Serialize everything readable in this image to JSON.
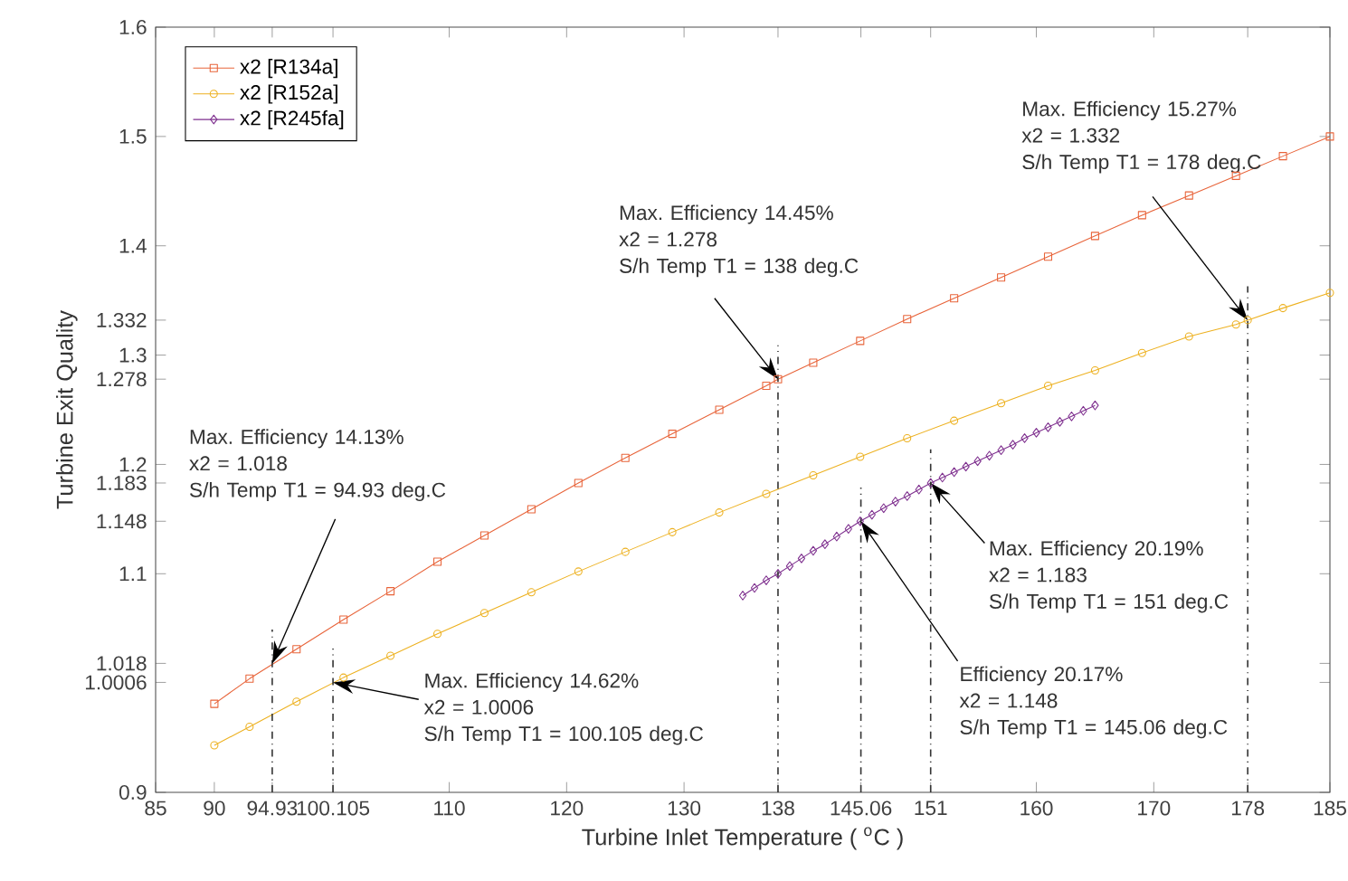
{
  "chart_data": {
    "type": "line",
    "xlabel": "Turbine Inlet Temperature ( $^{o}$C )",
    "ylabel": "Turbine Exit Quality",
    "xlim": [
      85,
      185
    ],
    "ylim": [
      0.9,
      1.6
    ],
    "xticks": [
      85,
      90,
      94.93,
      100.105,
      110,
      120,
      130,
      138,
      145.06,
      151,
      160,
      170,
      178,
      185
    ],
    "yticks": [
      0.9,
      1.0006,
      1.018,
      1.1,
      1.148,
      1.183,
      1.2,
      1.278,
      1.3,
      1.332,
      1.4,
      1.5,
      1.6
    ],
    "grid": false,
    "legend": "top left",
    "line_style": "solid",
    "series": [
      {
        "name": "x2 [R134a]",
        "color": "#e8643a",
        "marker": "square",
        "x": [
          90,
          93,
          97,
          101,
          105,
          109,
          113,
          117,
          121,
          125,
          129,
          133,
          137,
          138,
          141,
          145,
          149,
          153,
          157,
          161,
          165,
          169,
          173,
          177,
          181,
          185
        ],
        "values": [
          0.981,
          1.004,
          1.031,
          1.058,
          1.084,
          1.111,
          1.135,
          1.159,
          1.183,
          1.206,
          1.228,
          1.25,
          1.272,
          1.278,
          1.293,
          1.313,
          1.333,
          1.352,
          1.371,
          1.39,
          1.409,
          1.428,
          1.446,
          1.464,
          1.482,
          1.5
        ]
      },
      {
        "name": "x2 [R152a]",
        "color": "#edb120",
        "marker": "circle",
        "x": [
          90,
          93,
          97,
          101,
          105,
          109,
          113,
          117,
          121,
          125,
          129,
          133,
          137,
          141,
          145,
          149,
          153,
          157,
          161,
          165,
          169,
          173,
          177,
          178,
          181,
          185
        ],
        "values": [
          0.943,
          0.96,
          0.983,
          1.005,
          1.025,
          1.045,
          1.064,
          1.083,
          1.102,
          1.12,
          1.138,
          1.156,
          1.173,
          1.19,
          1.207,
          1.224,
          1.24,
          1.256,
          1.272,
          1.286,
          1.302,
          1.317,
          1.328,
          1.332,
          1.343,
          1.357
        ]
      },
      {
        "name": "x2 [R245fa]",
        "color": "#7e2f8e",
        "marker": "diamond",
        "x": [
          135,
          136,
          137,
          138,
          139,
          140,
          141,
          142,
          143,
          144,
          145,
          146,
          147,
          148,
          149,
          150,
          151,
          152,
          153,
          154,
          155,
          156,
          157,
          158,
          159,
          160,
          161,
          162,
          163,
          164,
          165
        ],
        "values": [
          1.08,
          1.087,
          1.094,
          1.1,
          1.107,
          1.114,
          1.121,
          1.127,
          1.134,
          1.141,
          1.148,
          1.154,
          1.16,
          1.166,
          1.171,
          1.177,
          1.183,
          1.188,
          1.193,
          1.198,
          1.203,
          1.208,
          1.213,
          1.218,
          1.224,
          1.229,
          1.234,
          1.239,
          1.244,
          1.249,
          1.254
        ]
      }
    ],
    "ref_lines": [
      {
        "axis": "x",
        "value": 94.93,
        "line_style": "dashdot",
        "color": "#333333"
      },
      {
        "axis": "x",
        "value": 100.105,
        "line_style": "dashdot",
        "color": "#333333"
      },
      {
        "axis": "x",
        "value": 138,
        "line_style": "dashdot",
        "color": "#333333"
      },
      {
        "axis": "x",
        "value": 145.06,
        "line_style": "dashdot",
        "color": "#333333"
      },
      {
        "axis": "x",
        "value": 151,
        "line_style": "dashdot",
        "color": "#333333"
      },
      {
        "axis": "x",
        "value": 178,
        "line_style": "dashdot",
        "color": "#333333"
      }
    ],
    "annotations": [
      {
        "text": "Max. Efficiency 14.13%\nx2 = 1.018\nS/h Temp T1 = 94.93 deg.C",
        "x": 94.93,
        "y": 1.018
      },
      {
        "text": "Max. Efficiency 14.62%\nx2 = 1.0006\nS/h Temp T1 = 100.105 deg.C",
        "x": 100.105,
        "y": 1.0006
      },
      {
        "text": "Max. Efficiency 14.45%\nx2 = 1.278\nS/h Temp T1 = 138 deg.C",
        "x": 138,
        "y": 1.278
      },
      {
        "text": "Efficiency 20.17%\nx2 = 1.148\nS/h Temp T1 = 145.06 deg.C",
        "x": 145.06,
        "y": 1.148
      },
      {
        "text": "Max. Efficiency 20.19%\nx2 = 1.183\nS/h Temp T1 = 151 deg.C",
        "x": 151,
        "y": 1.183
      },
      {
        "text": "Max. Efficiency 15.27%\nx2 = 1.332\nS/h Temp T1 = 178 deg.C",
        "x": 178,
        "y": 1.332
      }
    ]
  }
}
